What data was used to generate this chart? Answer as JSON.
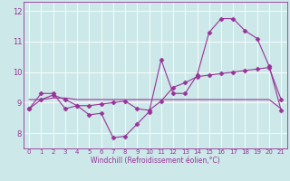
{
  "x": [
    0,
    1,
    2,
    3,
    4,
    5,
    6,
    7,
    8,
    9,
    10,
    11,
    12,
    13,
    14,
    15,
    16,
    17,
    18,
    19,
    20,
    21
  ],
  "windchill": [
    8.8,
    9.3,
    9.3,
    8.8,
    8.9,
    8.6,
    8.65,
    7.85,
    7.9,
    8.3,
    8.7,
    10.4,
    9.3,
    9.3,
    9.9,
    11.3,
    11.75,
    11.75,
    11.35,
    11.1,
    10.2,
    8.75
  ],
  "trend": [
    8.8,
    9.1,
    9.25,
    9.1,
    8.9,
    8.9,
    8.95,
    9.0,
    9.05,
    8.8,
    8.75,
    9.05,
    9.5,
    9.65,
    9.85,
    9.9,
    9.95,
    10.0,
    10.05,
    10.1,
    10.15,
    9.1
  ],
  "flat": [
    9.1,
    9.1,
    9.15,
    9.15,
    9.1,
    9.1,
    9.1,
    9.1,
    9.1,
    9.1,
    9.1,
    9.1,
    9.1,
    9.1,
    9.1,
    9.1,
    9.1,
    9.1,
    9.1,
    9.1,
    9.1,
    8.8
  ],
  "color": "#993399",
  "bg_color": "#cce8e8",
  "grid_color": "#ffffff",
  "xlabel": "Windchill (Refroidissement éolien,°C)",
  "xlim": [
    -0.5,
    21.5
  ],
  "ylim": [
    7.5,
    12.3
  ],
  "yticks": [
    8,
    9,
    10,
    11,
    12
  ],
  "xticks": [
    0,
    1,
    2,
    3,
    4,
    5,
    6,
    7,
    8,
    9,
    10,
    11,
    12,
    13,
    14,
    15,
    16,
    17,
    18,
    19,
    20,
    21
  ],
  "markersize": 2.5,
  "linewidth": 0.8
}
